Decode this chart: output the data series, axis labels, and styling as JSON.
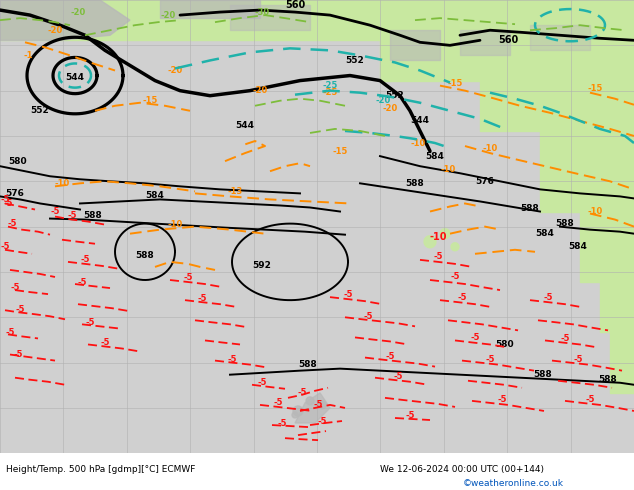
{
  "figsize": [
    6.34,
    4.9
  ],
  "dpi": 100,
  "bg_ocean": "#d0d0d0",
  "land_green": "#c8e8a0",
  "land_gray": "#b8b8b8",
  "grid_color": "#b0b0b0",
  "black_lw": 2.0,
  "orange": "#FF8C00",
  "teal": "#20B2AA",
  "ygreen": "#7DBD3B",
  "red": "#FF1010",
  "bottom_left": "Height/Temp. 500 hPa [gdmp][°C] ECMWF",
  "bottom_right": "We 12-06-2024 00:00 UTC (00+144)",
  "copyright": "©weatheronline.co.uk"
}
